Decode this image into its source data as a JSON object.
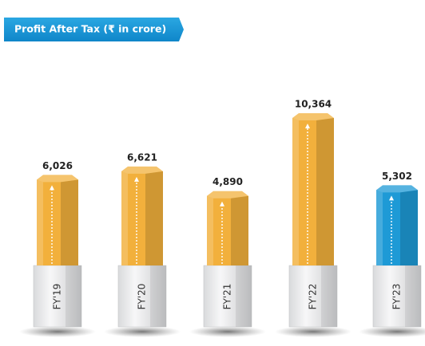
{
  "chart_data": {
    "type": "bar",
    "title": "Profit After Tax (₹ in crore)",
    "categories": [
      "FY'19",
      "FY'20",
      "FY'21",
      "FY'22",
      "FY'23"
    ],
    "values": [
      6026,
      6621,
      4890,
      10364,
      5302
    ],
    "value_labels": [
      "6,026",
      "6,621",
      "4,890",
      "10,364",
      "5,302"
    ],
    "colors": [
      "#f2b03c",
      "#f2b03c",
      "#f2b03c",
      "#f2b03c",
      "#1e9ad6"
    ]
  }
}
